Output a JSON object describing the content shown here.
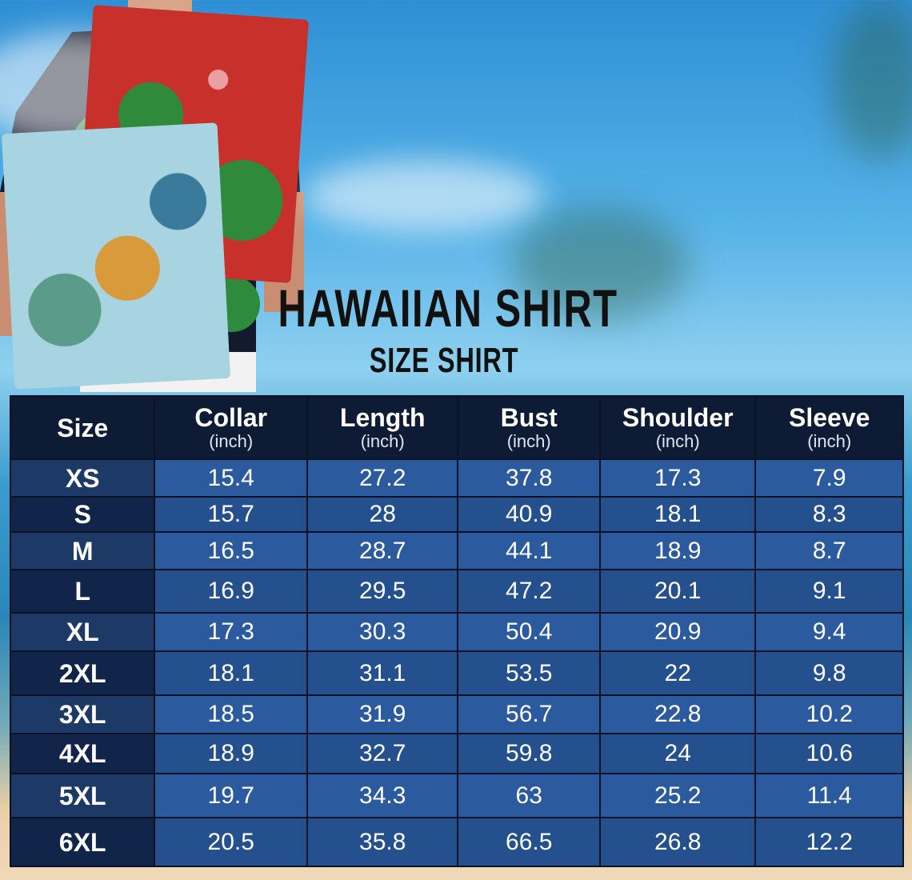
{
  "title": "HAWAIIAN SHIRT",
  "subtitle": "SIZE SHIRT",
  "colors": {
    "header": "#0e1b35",
    "row_light": "#2b5b9e",
    "row_dark": "#24508d",
    "size_col_dark": "#11254a"
  },
  "table": {
    "headers": [
      {
        "label": "Size",
        "unit": ""
      },
      {
        "label": "Collar",
        "unit": "(inch)"
      },
      {
        "label": "Length",
        "unit": "(inch)"
      },
      {
        "label": "Bust",
        "unit": "(inch)"
      },
      {
        "label": "Shoulder",
        "unit": "(inch)"
      },
      {
        "label": "Sleeve",
        "unit": "(inch)"
      }
    ],
    "rows": [
      [
        "XS",
        "15.4",
        "27.2",
        "37.8",
        "17.3",
        "7.9"
      ],
      [
        "S",
        "15.7",
        "28",
        "40.9",
        "18.1",
        "8.3"
      ],
      [
        "M",
        "16.5",
        "28.7",
        "44.1",
        "18.9",
        "8.7"
      ],
      [
        "L",
        "16.9",
        "29.5",
        "47.2",
        "20.1",
        "9.1"
      ],
      [
        "XL",
        "17.3",
        "30.3",
        "50.4",
        "20.9",
        "9.4"
      ],
      [
        "2XL",
        "18.1",
        "31.1",
        "53.5",
        "22",
        "9.8"
      ],
      [
        "3XL",
        "18.5",
        "31.9",
        "56.7",
        "22.8",
        "10.2"
      ],
      [
        "4XL",
        "18.9",
        "32.7",
        "59.8",
        "24",
        "10.6"
      ],
      [
        "5XL",
        "19.7",
        "34.3",
        "63",
        "25.2",
        "11.4"
      ],
      [
        "6XL",
        "20.5",
        "35.8",
        "66.5",
        "26.8",
        "12.2"
      ]
    ]
  }
}
